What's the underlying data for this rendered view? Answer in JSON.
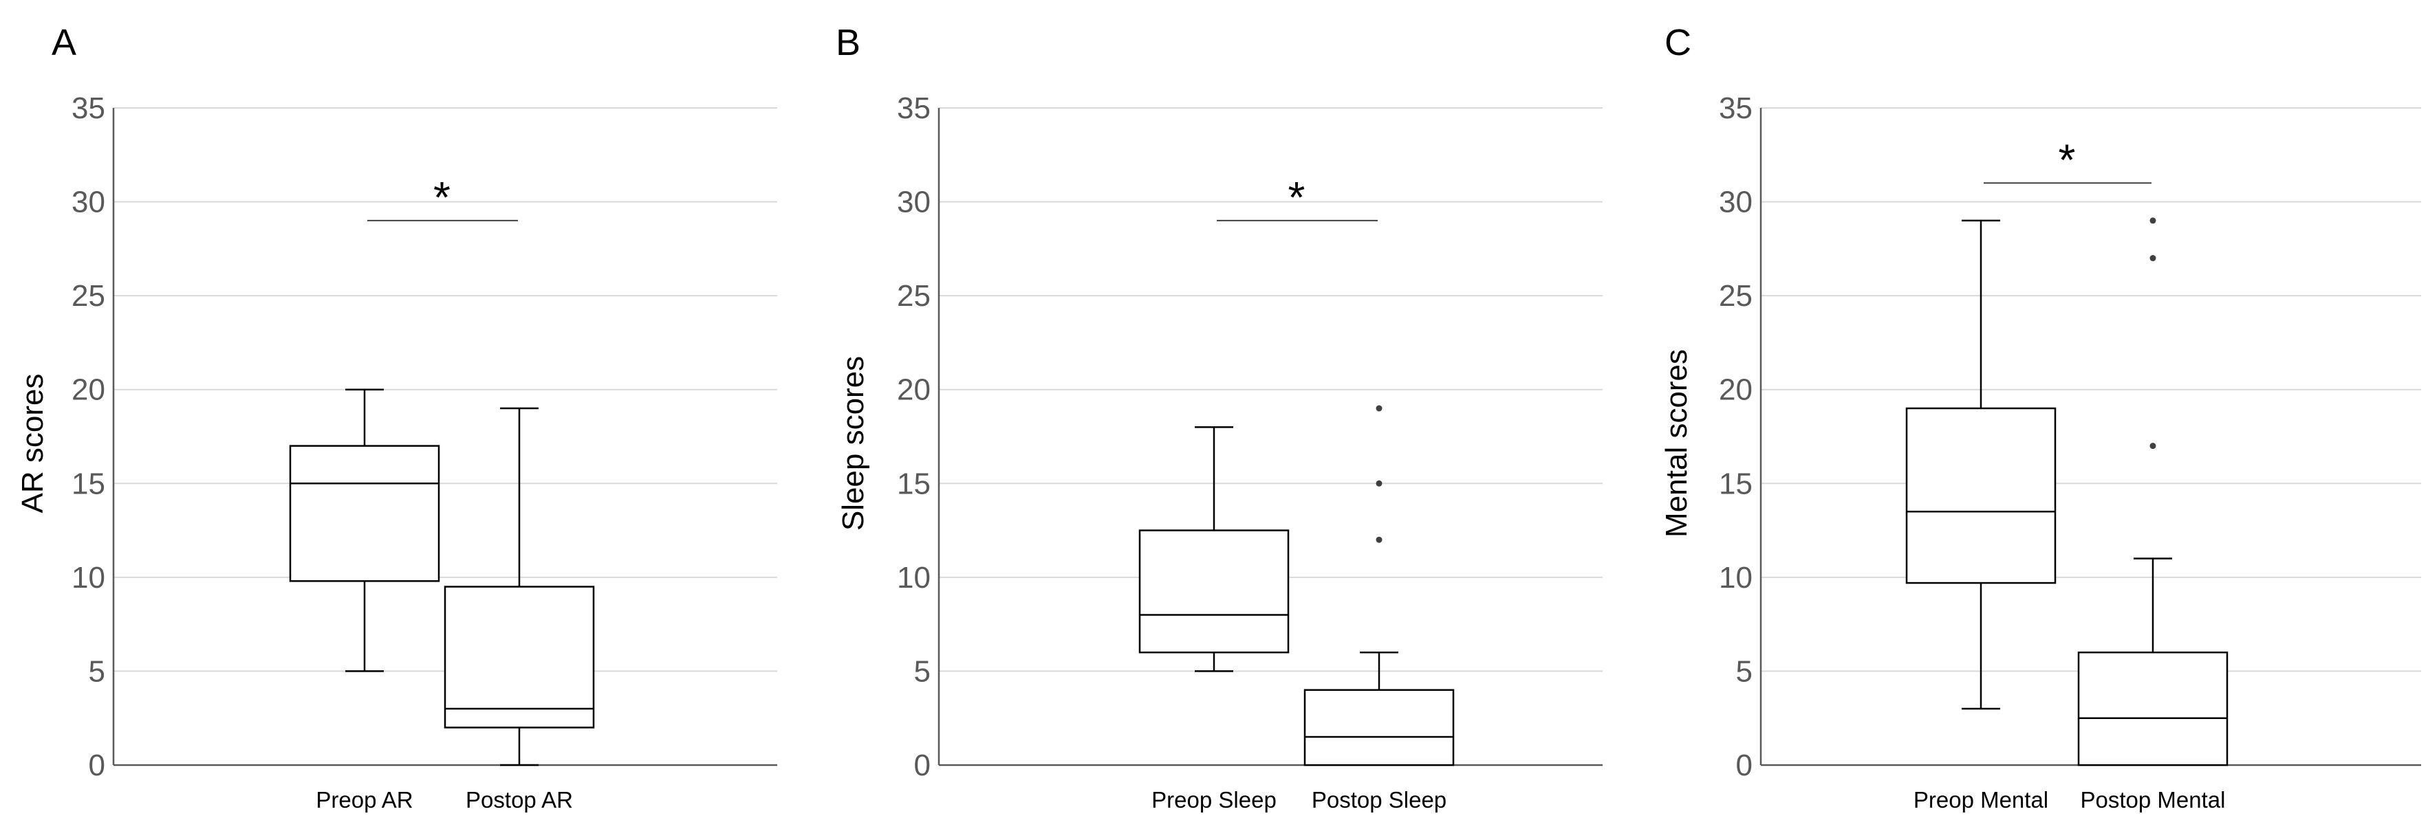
{
  "chart_data": [
    {
      "type": "box",
      "panel_label": "A",
      "ylabel": "AR scores",
      "ylim": [
        0,
        35
      ],
      "yticks": [
        "0",
        "5",
        "10",
        "15",
        "20",
        "25",
        "30",
        "35"
      ],
      "grid": true,
      "categories": [
        "Preop AR",
        "Postop AR"
      ],
      "boxes": [
        {
          "name": "Preop AR",
          "whisker_low": 5,
          "q1": 9.8,
          "median": 15,
          "q3": 17,
          "whisker_high": 20,
          "outliers": []
        },
        {
          "name": "Postop AR",
          "whisker_low": 0,
          "q1": 2,
          "median": 3,
          "q3": 9.5,
          "whisker_high": 19,
          "outliers": []
        }
      ],
      "significance": {
        "label": "*",
        "level": 29
      }
    },
    {
      "type": "box",
      "panel_label": "B",
      "ylabel": "Sleep scores",
      "ylim": [
        0,
        35
      ],
      "yticks": [
        "0",
        "5",
        "10",
        "15",
        "20",
        "25",
        "30",
        "35"
      ],
      "grid": true,
      "categories": [
        "Preop Sleep",
        "Postop Sleep"
      ],
      "boxes": [
        {
          "name": "Preop Sleep",
          "whisker_low": 5,
          "q1": 6,
          "median": 8,
          "q3": 12.5,
          "whisker_high": 18,
          "outliers": []
        },
        {
          "name": "Postop Sleep",
          "whisker_low": 0,
          "q1": 0,
          "median": 1.5,
          "q3": 4,
          "whisker_high": 6,
          "outliers": [
            12,
            15,
            19
          ]
        }
      ],
      "significance": {
        "label": "*",
        "level": 29
      }
    },
    {
      "type": "box",
      "panel_label": "C",
      "ylabel": "Mental scores",
      "ylim": [
        0,
        35
      ],
      "yticks": [
        "0",
        "5",
        "10",
        "15",
        "20",
        "25",
        "30",
        "35"
      ],
      "grid": true,
      "categories": [
        "Preop Mental",
        "Postop Mental"
      ],
      "boxes": [
        {
          "name": "Preop Mental",
          "whisker_low": 3,
          "q1": 9.7,
          "median": 13.5,
          "q3": 19,
          "whisker_high": 29,
          "outliers": []
        },
        {
          "name": "Postop Mental",
          "whisker_low": 0,
          "q1": 0,
          "median": 2.5,
          "q3": 6,
          "whisker_high": 11,
          "outliers": [
            17,
            27,
            29
          ]
        }
      ],
      "significance": {
        "label": "*",
        "level": 31
      }
    }
  ],
  "colors": {
    "grid": "#d9d9d9",
    "axis": "#595959",
    "box_stroke": "#000000",
    "tick_text": "#595959"
  }
}
